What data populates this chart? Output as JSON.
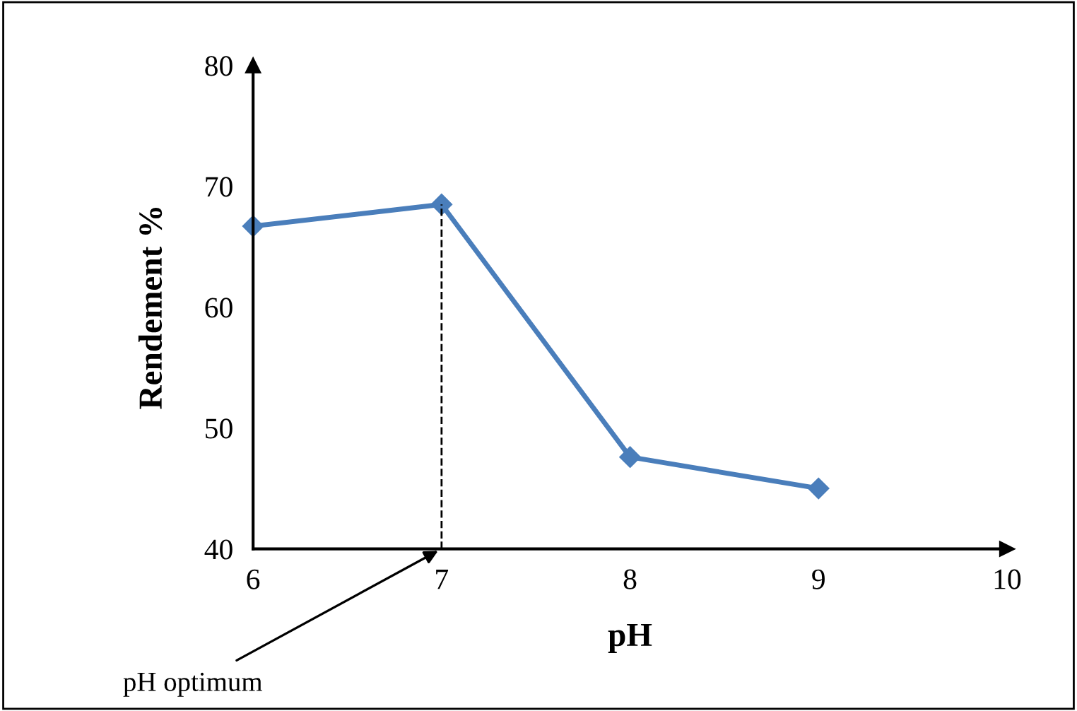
{
  "chart_data": {
    "type": "line",
    "xlabel": "pH",
    "ylabel": "Rendement %",
    "x": [
      6,
      7,
      8,
      9
    ],
    "series": [
      {
        "color": "#4a7ebb",
        "values": [
          66.7,
          68.5,
          47.6,
          45.0
        ]
      }
    ],
    "xlim": [
      6,
      10
    ],
    "xticks": [
      6,
      7,
      8,
      9,
      10
    ],
    "ylim": [
      40,
      80
    ],
    "yticks": [
      40,
      50,
      60,
      70,
      80
    ],
    "ref_lines": [
      {
        "axis": "x",
        "value": 7,
        "line_style": "dashed",
        "color": "#000000"
      }
    ],
    "annotations": [
      {
        "text": "pH optimum",
        "x": 7,
        "y": 40
      }
    ],
    "marker": "diamond",
    "line_style": "solid",
    "grid": false,
    "legend": false
  }
}
